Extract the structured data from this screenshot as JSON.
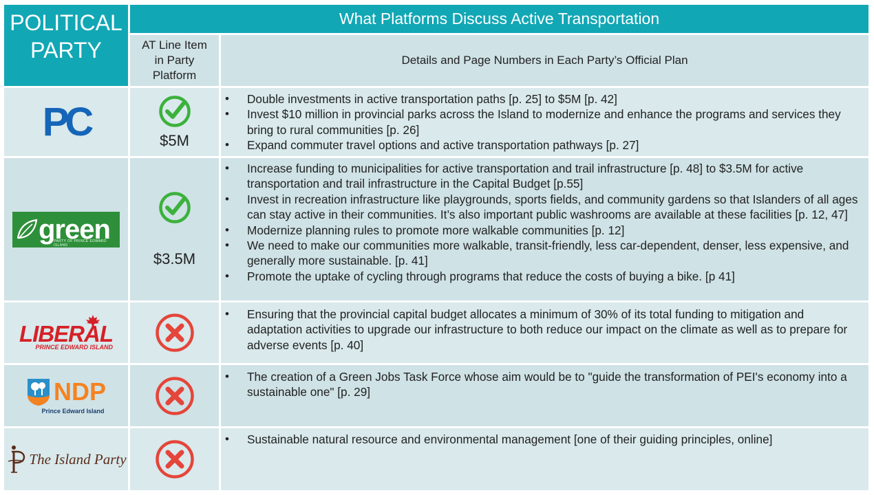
{
  "header": {
    "party_line1": "POLITICAL",
    "party_line2": "PARTY",
    "title": "What Platforms Discuss Active Transportation",
    "at_line1": "AT Line Item",
    "at_line2": "in Party",
    "at_line3": "Platform",
    "details": "Details and Page Numbers in Each Party’s Official Plan"
  },
  "colors": {
    "header_teal": "#12a7b5",
    "row_light": "#cfe2e6",
    "check_green": "#3cb13c",
    "cross_red": "#e5453a"
  },
  "rows": [
    {
      "logo_text": "PC",
      "mark": "check-icon",
      "amount": "$5M",
      "bullets": [
        "Double investments in active transportation paths [p. 25] to $5M [p. 42]",
        "Invest $10 million in provincial parks across the Island to modernize and enhance the programs and services they bring to rural communities [p. 26]",
        "Expand commuter travel options and active transportation pathways [p. 27]"
      ]
    },
    {
      "logo_text": "green",
      "logo_sub": "PARTY OF PRINCE EDWARD ISLAND",
      "mark": "check-icon",
      "amount": "$3.5M",
      "bullets": [
        "Increase funding to municipalities for active transportation and trail infrastructure [p. 48] to $3.5M for active transportation and trail infrastructure in the Capital Budget [p.55]",
        "Invest in recreation infrastructure like playgrounds, sports fields, and community gardens so that Islanders of all ages can stay active in their communities. It’s also important public washrooms are available at these facilities  [p. 12, 47]",
        "Modernize planning rules to promote more walkable communities  [p. 12]",
        "We need to make our communities more walkable, transit-friendly, less car-dependent, denser, less expensive, and generally more sustainable. [p. 41]",
        "Promote the uptake of cycling through programs that reduce the costs of buying a bike. [p 41]"
      ]
    },
    {
      "logo_text": "LIBERAL",
      "logo_sub": "PRINCE EDWARD ISLAND",
      "mark": "cross-icon",
      "bullets": [
        "Ensuring that the provincial capital budget allocates a minimum of 30% of its total funding to mitigation and adaptation activities to upgrade our infrastructure to both reduce our impact on the climate as well as to prepare for adverse events [p. 40]"
      ]
    },
    {
      "logo_text": "NDP",
      "logo_sub": "Prince  Edward  Island",
      "mark": "cross-icon",
      "bullets": [
        "The creation of a Green Jobs Task Force whose aim would be to \"guide the transformation of PEI's economy into a sustainable one\" [p. 29]"
      ]
    },
    {
      "logo_text": "The Island Party",
      "mark": "cross-icon",
      "bullets": [
        "Sustainable natural resource and environmental management [one of their guiding principles, online]"
      ]
    }
  ]
}
